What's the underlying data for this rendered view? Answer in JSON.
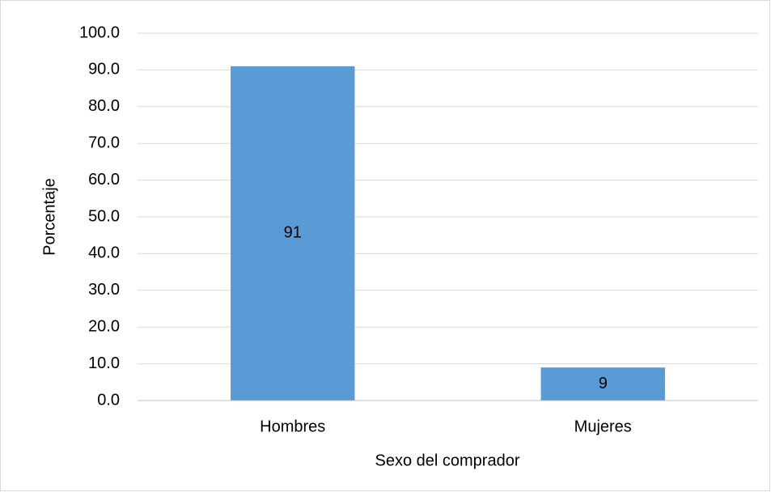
{
  "chart_data": {
    "type": "bar",
    "categories": [
      "Hombres",
      "Mujeres"
    ],
    "values": [
      91,
      9
    ],
    "color": "#5b9bd5",
    "xlabel": "Sexo del comprador",
    "ylabel": "Porcentaje",
    "ylim": [
      0,
      100
    ],
    "yticks": [
      {
        "value": 0,
        "label": "0.0"
      },
      {
        "value": 10,
        "label": "10.0"
      },
      {
        "value": 20,
        "label": "20.0"
      },
      {
        "value": 30,
        "label": "30.0"
      },
      {
        "value": 40,
        "label": "40.0"
      },
      {
        "value": 50,
        "label": "50.0"
      },
      {
        "value": 60,
        "label": "60.0"
      },
      {
        "value": 70,
        "label": "70.0"
      },
      {
        "value": 80,
        "label": "80.0"
      },
      {
        "value": 90,
        "label": "90.0"
      },
      {
        "value": 100,
        "label": "100.0"
      }
    ],
    "grid": true,
    "data_labels": true
  }
}
